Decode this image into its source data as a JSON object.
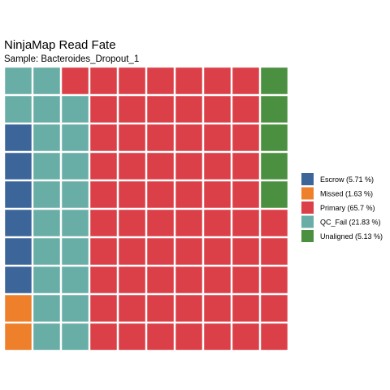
{
  "chart_data": {
    "type": "waffle",
    "title": "NinjaMap Read Fate",
    "subtitle": "Sample: Bacteroides_Dropout_1",
    "grid": {
      "rows": 10,
      "cols": 10,
      "fill_order": "column-major, bottom-to-top, left-to-right"
    },
    "categories": [
      {
        "name": "Escrow",
        "legend_label": "Escrow (5.71 %)",
        "percent": 5.71,
        "cells": 6,
        "color": "#3c6599"
      },
      {
        "name": "Missed",
        "legend_label": "Missed (1.63 %)",
        "percent": 1.63,
        "cells": 2,
        "color": "#ee7f2b"
      },
      {
        "name": "Primary",
        "legend_label": "Primary (65.7 %)",
        "percent": 65.7,
        "cells": 66,
        "color": "#db4049"
      },
      {
        "name": "QC_Fail",
        "legend_label": "QC_Fail (21.83 %)",
        "percent": 21.83,
        "cells": 21,
        "color": "#68aea6"
      },
      {
        "name": "Unaligned",
        "legend_label": "Unaligned (5.13 %)",
        "percent": 5.13,
        "cells": 5,
        "color": "#4a9040"
      }
    ],
    "fill_sequence": [
      "Missed",
      "Escrow",
      "QC_Fail",
      "Primary",
      "Unaligned"
    ],
    "legend_placement": "right"
  }
}
